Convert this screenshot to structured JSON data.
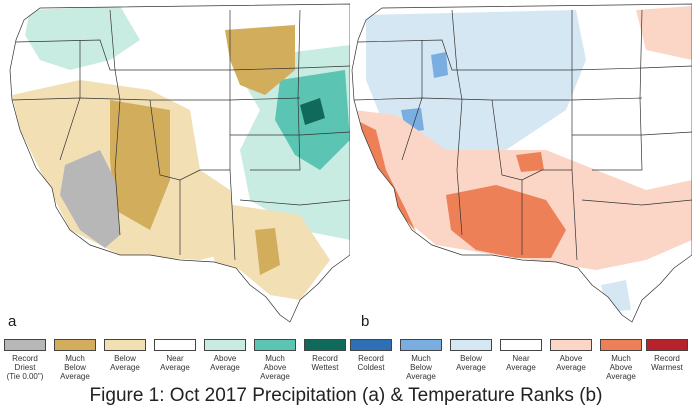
{
  "figure": {
    "caption": "Figure 1: Oct 2017 Precipitation (a) & Temperature Ranks (b)",
    "panel_a_letter": "a",
    "panel_b_letter": "b"
  },
  "colors": {
    "record_driest": "#b7b7b7",
    "much_below_avg_precip": "#d2ae5c",
    "below_avg_precip": "#f2dfb4",
    "near_average": "#ffffff",
    "above_avg_precip": "#c9ece2",
    "much_above_avg_precip": "#5cc4b2",
    "record_wettest": "#0f6a5c",
    "record_coldest": "#2f6fb5",
    "much_below_avg_temp": "#7aaee0",
    "below_avg_temp": "#d6e7f4",
    "above_avg_temp": "#fbd6c6",
    "much_above_avg_temp": "#ee8057",
    "record_warmest": "#b7222c",
    "state_borders": "#333333"
  },
  "legend": {
    "precipitation": [
      {
        "label": "Record\nDriest\n(Tie 0.00\")",
        "color_key": "record_driest"
      },
      {
        "label": "Much\nBelow\nAverage",
        "color_key": "much_below_avg_precip"
      },
      {
        "label": "Below\nAverage",
        "color_key": "below_avg_precip"
      },
      {
        "label": "Near\nAverage",
        "color_key": "near_average"
      },
      {
        "label": "Above\nAverage",
        "color_key": "above_avg_precip"
      },
      {
        "label": "Much\nAbove\nAverage",
        "color_key": "much_above_avg_precip"
      },
      {
        "label": "Record\nWettest",
        "color_key": "record_wettest"
      }
    ],
    "temperature": [
      {
        "label": "Record\nColdest",
        "color_key": "record_coldest"
      },
      {
        "label": "Much\nBelow\nAverage",
        "color_key": "much_below_avg_temp"
      },
      {
        "label": "Below\nAverage",
        "color_key": "below_avg_temp"
      },
      {
        "label": "Near\nAverage",
        "color_key": "near_average"
      },
      {
        "label": "Above\nAverage",
        "color_key": "above_avg_temp"
      },
      {
        "label": "Much\nAbove\nAverage",
        "color_key": "much_above_avg_temp"
      },
      {
        "label": "Record\nWarmest",
        "color_key": "record_warmest"
      }
    ]
  }
}
